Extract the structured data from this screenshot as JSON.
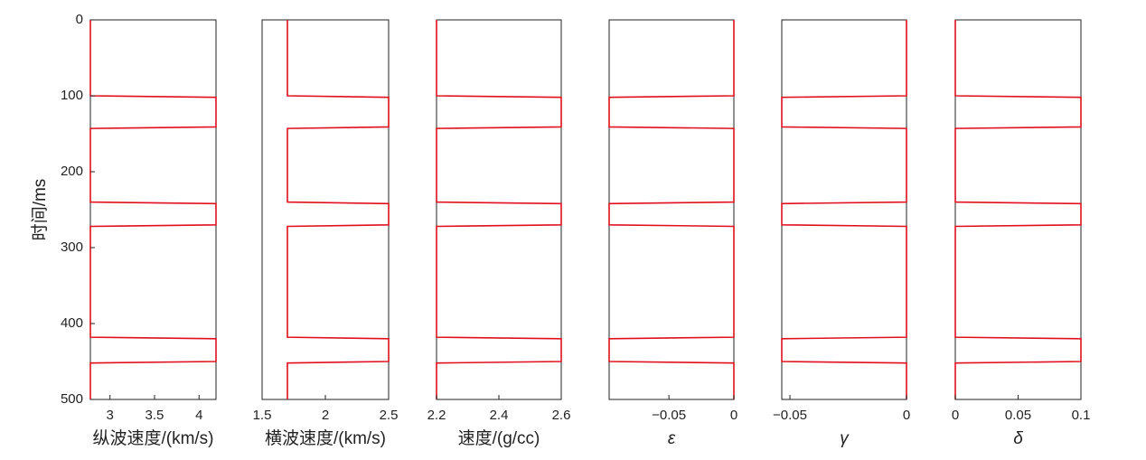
{
  "chart_data": [
    {
      "type": "line",
      "xlabel": "纵波速度/(km/s)",
      "ylabel": "时间/ms",
      "color": "#e0101e",
      "x": [
        2.78,
        2.78,
        4.19,
        4.19,
        2.78,
        2.78,
        4.19,
        4.19,
        2.78,
        2.78,
        4.19,
        4.19,
        2.78,
        2.78
      ],
      "y": [
        0,
        100,
        102,
        141,
        143,
        240,
        242,
        270,
        272,
        418,
        420,
        450,
        452,
        500
      ],
      "xlim": [
        2.78,
        4.19
      ],
      "xticks": [
        3,
        3.5,
        4
      ],
      "ylim": [
        0,
        500
      ],
      "yticks": [
        0,
        100,
        200,
        300,
        400,
        500
      ],
      "y_inverted": true
    },
    {
      "type": "line",
      "xlabel": "横波速度/(km/s)",
      "color": "#e0101e",
      "x": [
        1.7,
        1.7,
        2.5,
        2.5,
        1.7,
        1.7,
        2.5,
        2.5,
        1.7,
        1.7,
        2.5,
        2.5,
        1.7,
        1.7
      ],
      "y": [
        0,
        100,
        102,
        141,
        143,
        240,
        242,
        270,
        272,
        418,
        420,
        450,
        452,
        500
      ],
      "xlim": [
        1.5,
        2.5
      ],
      "xticks": [
        1.5,
        2,
        2.5
      ],
      "ylim": [
        0,
        500
      ],
      "y_inverted": true
    },
    {
      "type": "line",
      "xlabel": "速度/(g/cc)",
      "color": "#e0101e",
      "x": [
        2.2,
        2.2,
        2.6,
        2.6,
        2.2,
        2.2,
        2.6,
        2.6,
        2.2,
        2.2,
        2.6,
        2.6,
        2.2,
        2.2
      ],
      "y": [
        0,
        100,
        102,
        141,
        143,
        240,
        242,
        270,
        272,
        418,
        420,
        450,
        452,
        500
      ],
      "xlim": [
        2.2,
        2.6
      ],
      "xticks": [
        2.2,
        2.4,
        2.6
      ],
      "ylim": [
        0,
        500
      ],
      "y_inverted": true
    },
    {
      "type": "line",
      "xlabel": "ε",
      "color": "#e0101e",
      "x": [
        0,
        0,
        -0.096,
        -0.096,
        0,
        0,
        -0.096,
        -0.096,
        0,
        0,
        -0.096,
        -0.096,
        0,
        0
      ],
      "y": [
        0,
        100,
        102,
        141,
        143,
        240,
        242,
        270,
        272,
        418,
        420,
        450,
        452,
        500
      ],
      "xlim": [
        -0.096,
        0
      ],
      "xticks": [
        {
          "value": -0.05,
          "label": "−0.05"
        },
        0
      ],
      "ylim": [
        0,
        500
      ],
      "y_inverted": true
    },
    {
      "type": "line",
      "xlabel": "γ",
      "color": "#e0101e",
      "x": [
        0,
        0,
        -0.0535,
        -0.0535,
        0,
        0,
        -0.0535,
        -0.0535,
        0,
        0,
        -0.0535,
        -0.0535,
        0,
        0
      ],
      "y": [
        0,
        100,
        102,
        141,
        143,
        240,
        242,
        270,
        272,
        418,
        420,
        450,
        452,
        500
      ],
      "xlim": [
        -0.0535,
        0
      ],
      "xticks": [
        {
          "value": -0.05,
          "label": "−0.05"
        },
        0
      ],
      "ylim": [
        0,
        500
      ],
      "y_inverted": true
    },
    {
      "type": "line",
      "xlabel": "δ",
      "color": "#e0101e",
      "x": [
        0,
        0,
        0.1,
        0.1,
        0,
        0,
        0.1,
        0.1,
        0,
        0,
        0.1,
        0.1,
        0,
        0
      ],
      "y": [
        0,
        100,
        102,
        141,
        143,
        240,
        242,
        270,
        272,
        418,
        420,
        450,
        452,
        500
      ],
      "xlim": [
        0,
        0.1
      ],
      "xticks": [
        0,
        0.05,
        0.1
      ],
      "ylim": [
        0,
        500
      ],
      "y_inverted": true
    }
  ]
}
